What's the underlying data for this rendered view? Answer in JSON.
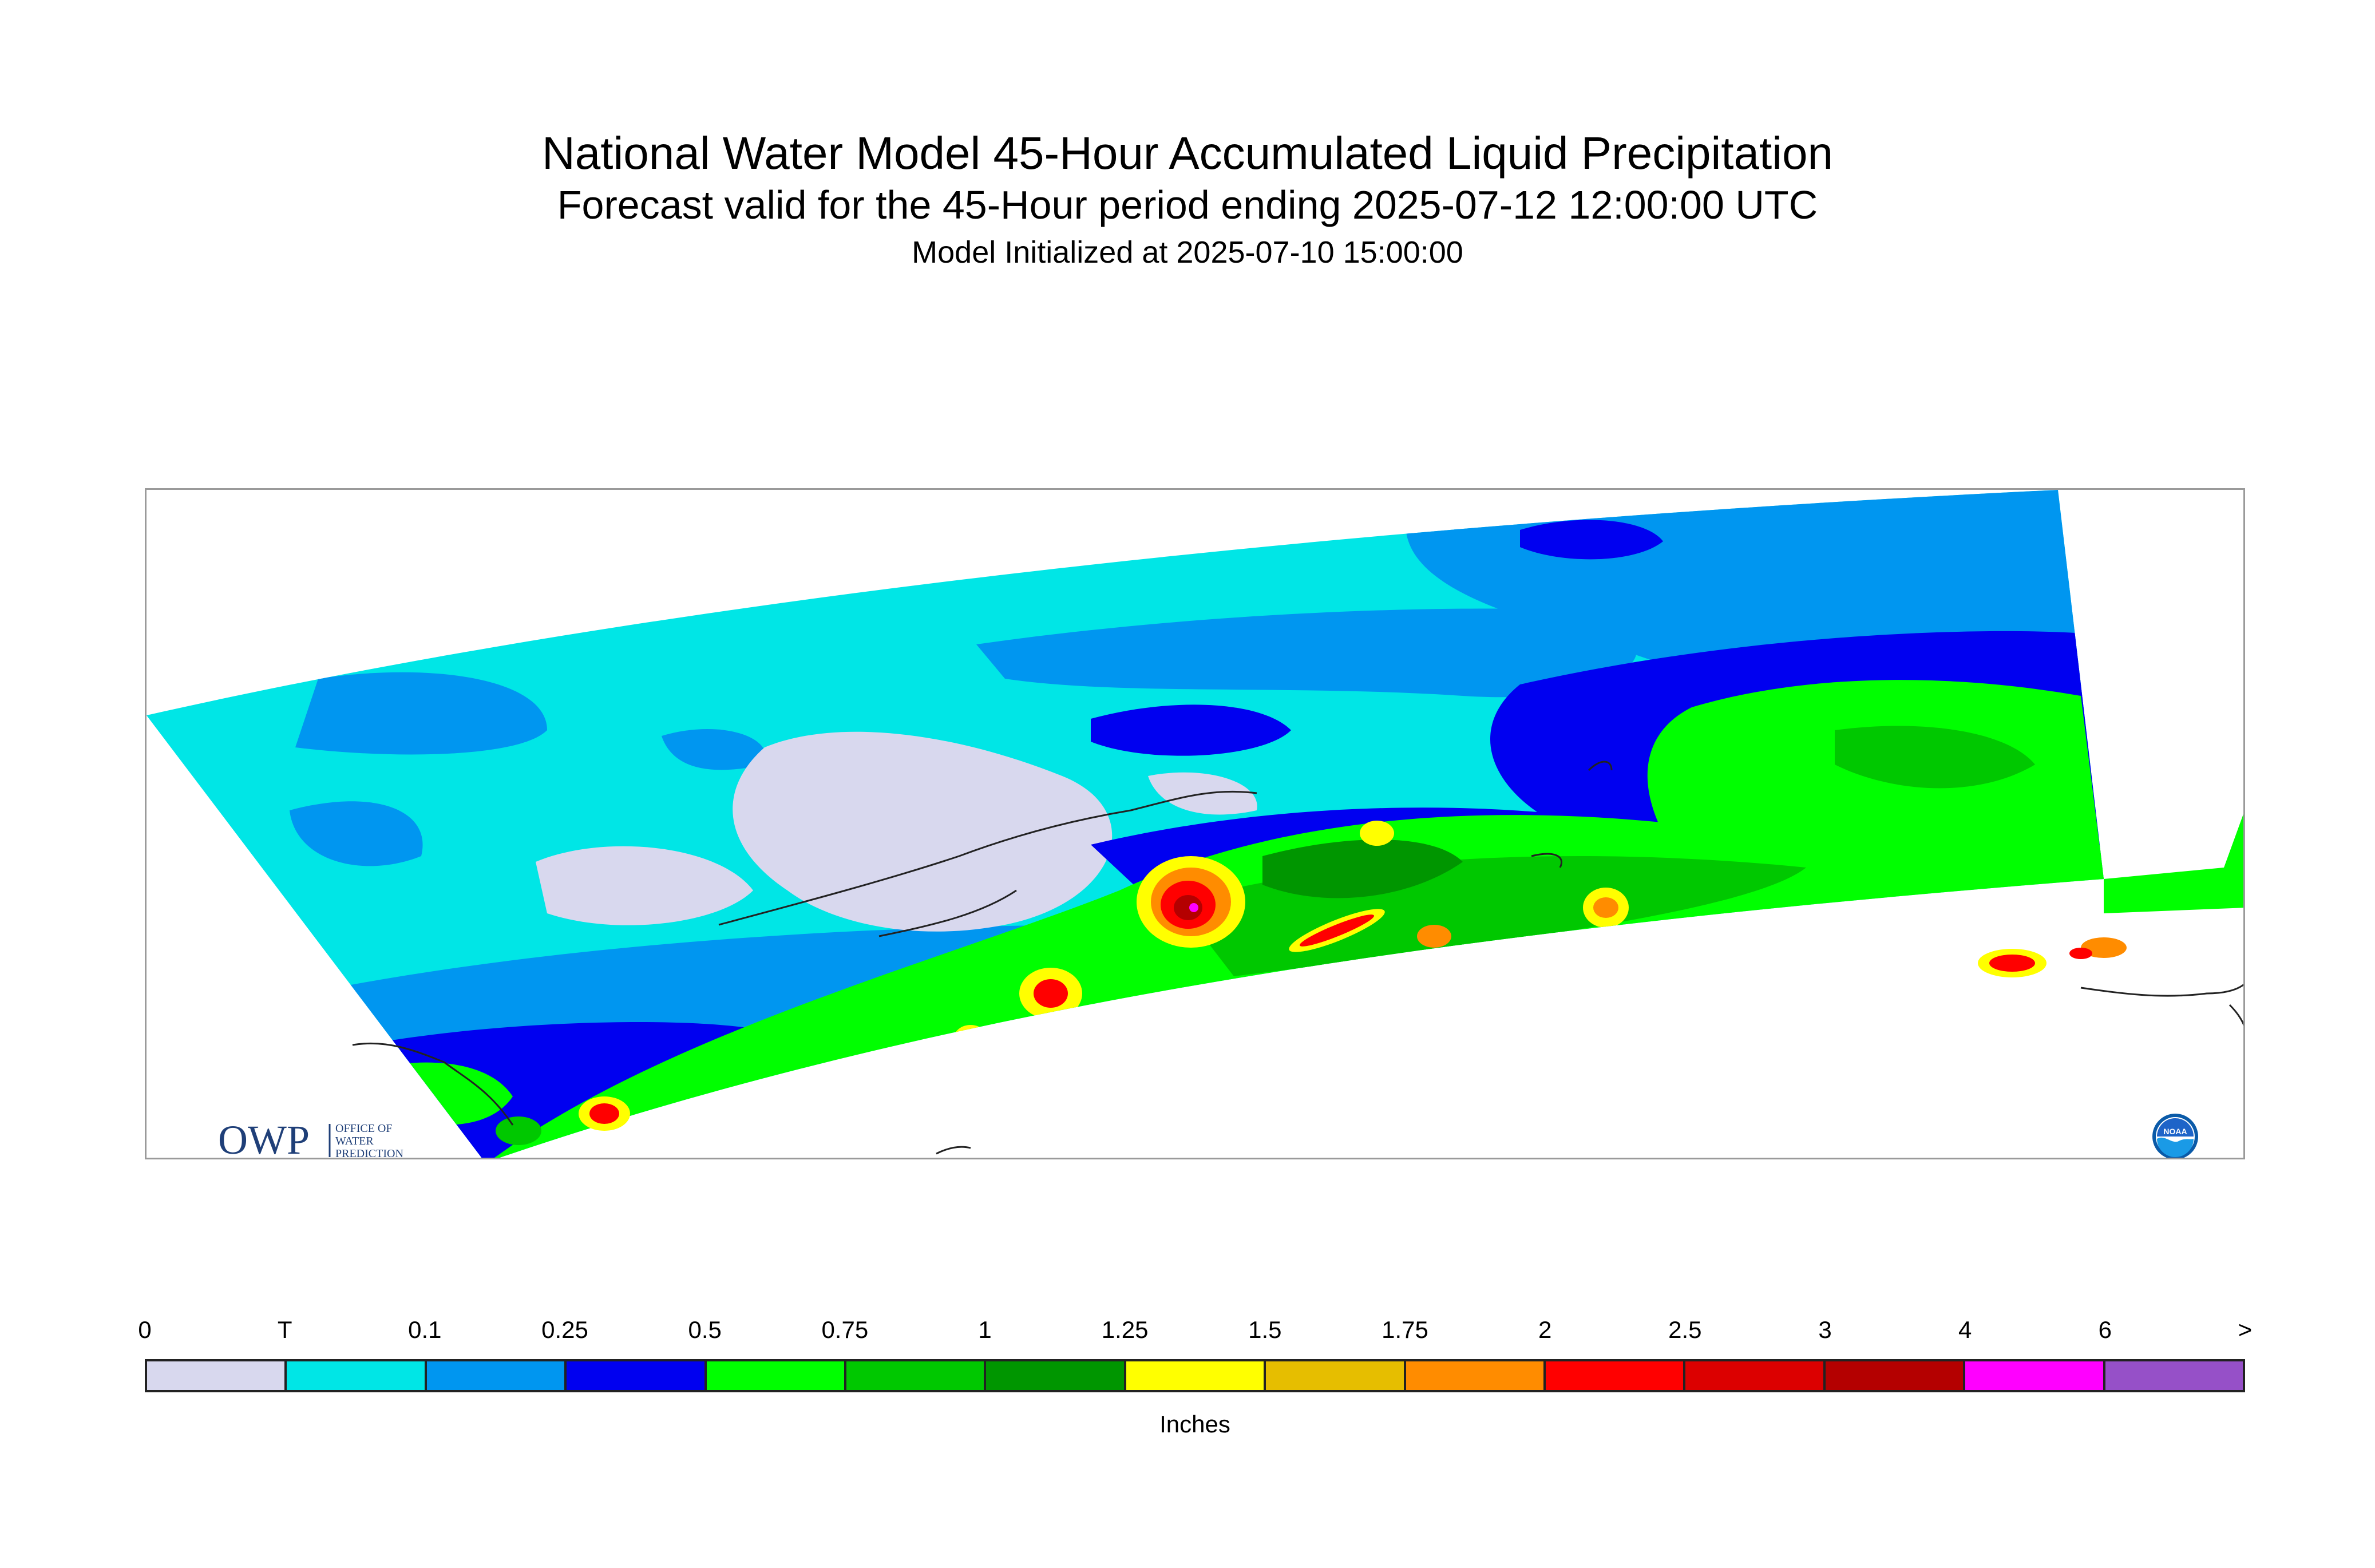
{
  "title": "National Water Model 45-Hour Accumulated Liquid Precipitation",
  "subtitle": "Forecast valid for the 45-Hour period ending 2025-07-12 12:00:00 UTC",
  "init_line": "Model Initialized at 2025-07-10 15:00:00",
  "logos": {
    "owp_mark": "OWP",
    "owp_text": [
      "OFFICE OF",
      "WATER",
      "PREDICTION"
    ],
    "noaa_mark": "NOAA"
  },
  "legend": {
    "units": "Inches",
    "tick_labels": [
      "0",
      "T",
      "0.1",
      "0.25",
      "0.5",
      "0.75",
      "1",
      "1.25",
      "1.5",
      "1.75",
      "2",
      "2.5",
      "3",
      "4",
      "6",
      ">"
    ],
    "colors": [
      "#d8d8ee",
      "#00e6e6",
      "#0096f0",
      "#0000f0",
      "#00ff00",
      "#00c800",
      "#009600",
      "#ffff00",
      "#e6be00",
      "#ff8c00",
      "#ff0000",
      "#dc0000",
      "#b40000",
      "#ff00ff",
      "#9650c8"
    ]
  }
}
